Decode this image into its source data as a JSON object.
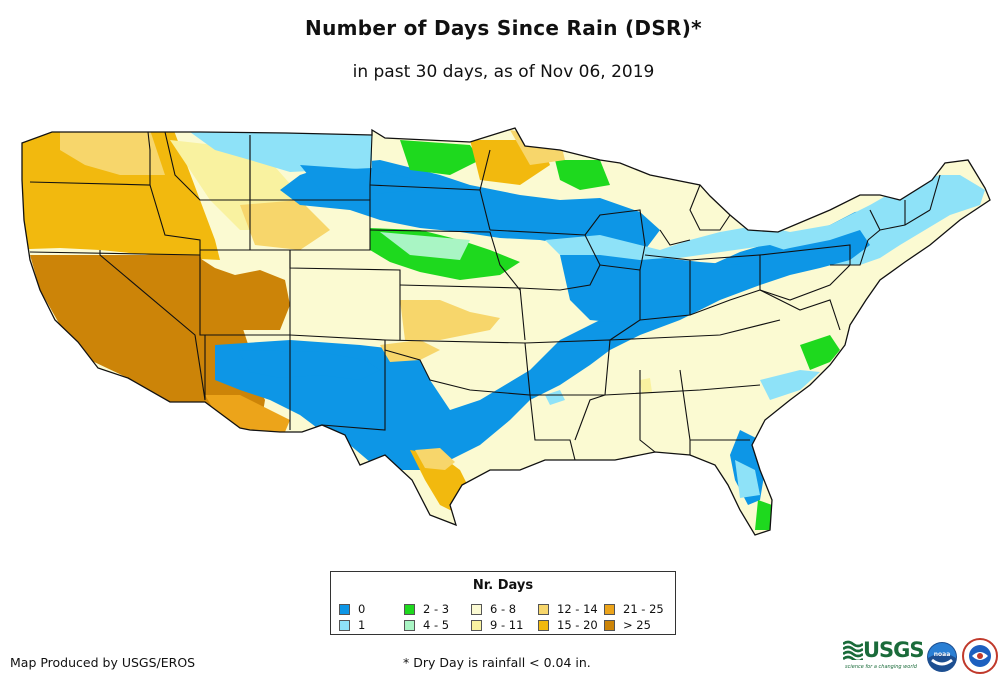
{
  "title": "Number of Days Since Rain (DSR)*",
  "subtitle": "in past 30 days, as of Nov 06, 2019",
  "legend": {
    "title": "Nr. Days",
    "items": [
      {
        "label": "0",
        "color": "#0d96e6"
      },
      {
        "label": "1",
        "color": "#8ee2f8"
      },
      {
        "label": "2 - 3",
        "color": "#1ed91e"
      },
      {
        "label": "4 - 5",
        "color": "#a9f5c4"
      },
      {
        "label": "6 - 8",
        "color": "#fbfad2"
      },
      {
        "label": "9 - 11",
        "color": "#f9f2a0"
      },
      {
        "label": "12 - 14",
        "color": "#f7d66b"
      },
      {
        "label": "15 - 20",
        "color": "#f2b90e"
      },
      {
        "label": "21 - 25",
        "color": "#eca41a"
      },
      {
        "label": "> 25",
        "color": "#cc8408"
      }
    ]
  },
  "footer": {
    "credit": "Map Produced by USGS/EROS",
    "note": "* Dry Day is rainfall < 0.04 in."
  },
  "logos": {
    "usgs": "USGS",
    "usgs_tagline": "science for a changing world",
    "noaa": "noaa"
  }
}
